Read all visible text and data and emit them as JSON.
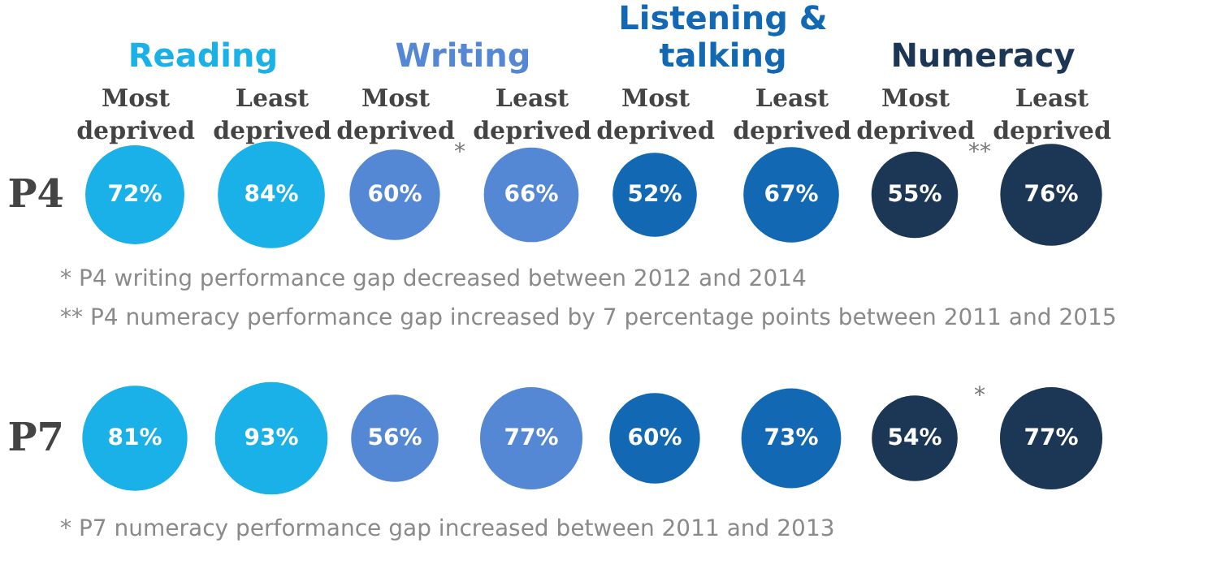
{
  "chart_data": [
    {
      "type": "other",
      "title": "Reading",
      "color": "#1ab0e8",
      "categories": [
        "Most deprived",
        "Least deprived"
      ],
      "series": [
        {
          "name": "P4",
          "values": [
            72,
            84
          ],
          "value_labels": [
            "72%",
            "84%"
          ]
        },
        {
          "name": "P7",
          "values": [
            81,
            93
          ],
          "value_labels": [
            "81%",
            "93%"
          ]
        }
      ],
      "annotations": [
        "* P4 writing performance gap decreased between 2012 and 2014",
        "** P4 numeracy performance gap increased by 7 percentage points between 2011 and 2015",
        "* P7 numeracy performance gap increased between 2011 and 2013"
      ]
    },
    {
      "type": "other",
      "title": "Writing",
      "color": "#5588d4",
      "categories": [
        "Most deprived",
        "Least deprived"
      ],
      "series": [
        {
          "values": [
            60,
            66
          ],
          "value_labels": [
            "60%",
            "66%"
          ]
        },
        {
          "values": [
            56,
            77
          ],
          "value_labels": [
            "56%",
            "77%"
          ]
        }
      ],
      "annotations": [
        "*"
      ]
    },
    {
      "type": "other",
      "title": "Listening & talking",
      "color": "#1268b3",
      "categories": [
        "Most deprived",
        "Least deprived"
      ],
      "series": [
        {
          "values": [
            52,
            67
          ],
          "value_labels": [
            "52%",
            "67%"
          ]
        },
        {
          "values": [
            60,
            73
          ],
          "value_labels": [
            "60%",
            "73%"
          ]
        }
      ]
    },
    {
      "type": "other",
      "title": "Numeracy",
      "color": "#1c3655",
      "categories": [
        "Most deprived",
        "Least deprived"
      ],
      "series": [
        {
          "values": [
            55,
            76
          ],
          "value_labels": [
            "55%",
            "76%"
          ]
        },
        {
          "values": [
            54,
            77
          ],
          "value_labels": [
            "54%",
            "77%"
          ]
        }
      ],
      "annotations": [
        "**",
        "*"
      ]
    }
  ]
}
